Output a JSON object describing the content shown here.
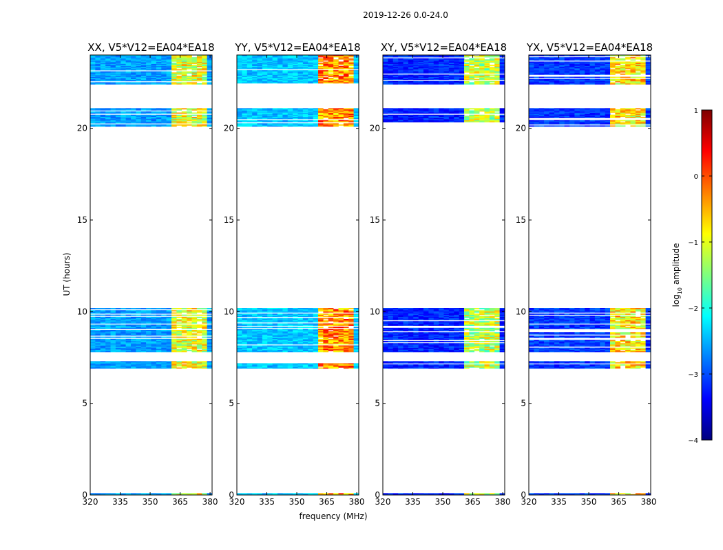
{
  "figure": {
    "suptitle": "2019-12-26 0.0-24.0"
  },
  "chart_data": {
    "type": "heatmap",
    "xlabel": "frequency (MHz)",
    "ylabel": "UT (hours)",
    "xlim": [
      320,
      381
    ],
    "ylim": [
      0,
      24
    ],
    "xticks": [
      320,
      335,
      350,
      365,
      380
    ],
    "yticks": [
      0,
      5,
      10,
      15,
      20
    ],
    "observed_time_ranges_hours": [
      [
        0.0,
        0.1
      ],
      [
        6.9,
        7.3
      ],
      [
        7.8,
        10.2
      ],
      [
        20.1,
        21.1
      ],
      [
        22.4,
        24.0
      ]
    ],
    "high_amplitude_band_mhz": [
      360.5,
      379
    ],
    "panels": [
      {
        "title": "XX, V5*V12=EA04*EA18",
        "background_level": -2.6,
        "band_level": -1.0
      },
      {
        "title": "YY, V5*V12=EA04*EA18",
        "background_level": -2.4,
        "band_level": -0.3
      },
      {
        "title": "XY, V5*V12=EA04*EA18",
        "background_level": -3.2,
        "band_level": -1.2
      },
      {
        "title": "YX, V5*V12=EA04*EA18",
        "background_level": -3.1,
        "band_level": -0.8
      }
    ],
    "colorbar": {
      "label_prefix": "log",
      "label_sub": "10",
      "label_suffix": " amplitude",
      "range": [
        -4,
        1
      ],
      "ticks": [
        "-4",
        "-3",
        "-2",
        "-1",
        "0",
        "1"
      ],
      "colormap": "jet",
      "stops": [
        "#00007f",
        "#0000ff",
        "#007fff",
        "#00ffff",
        "#7fff7f",
        "#ffff00",
        "#ff7f00",
        "#ff0000",
        "#7f0000"
      ]
    }
  }
}
